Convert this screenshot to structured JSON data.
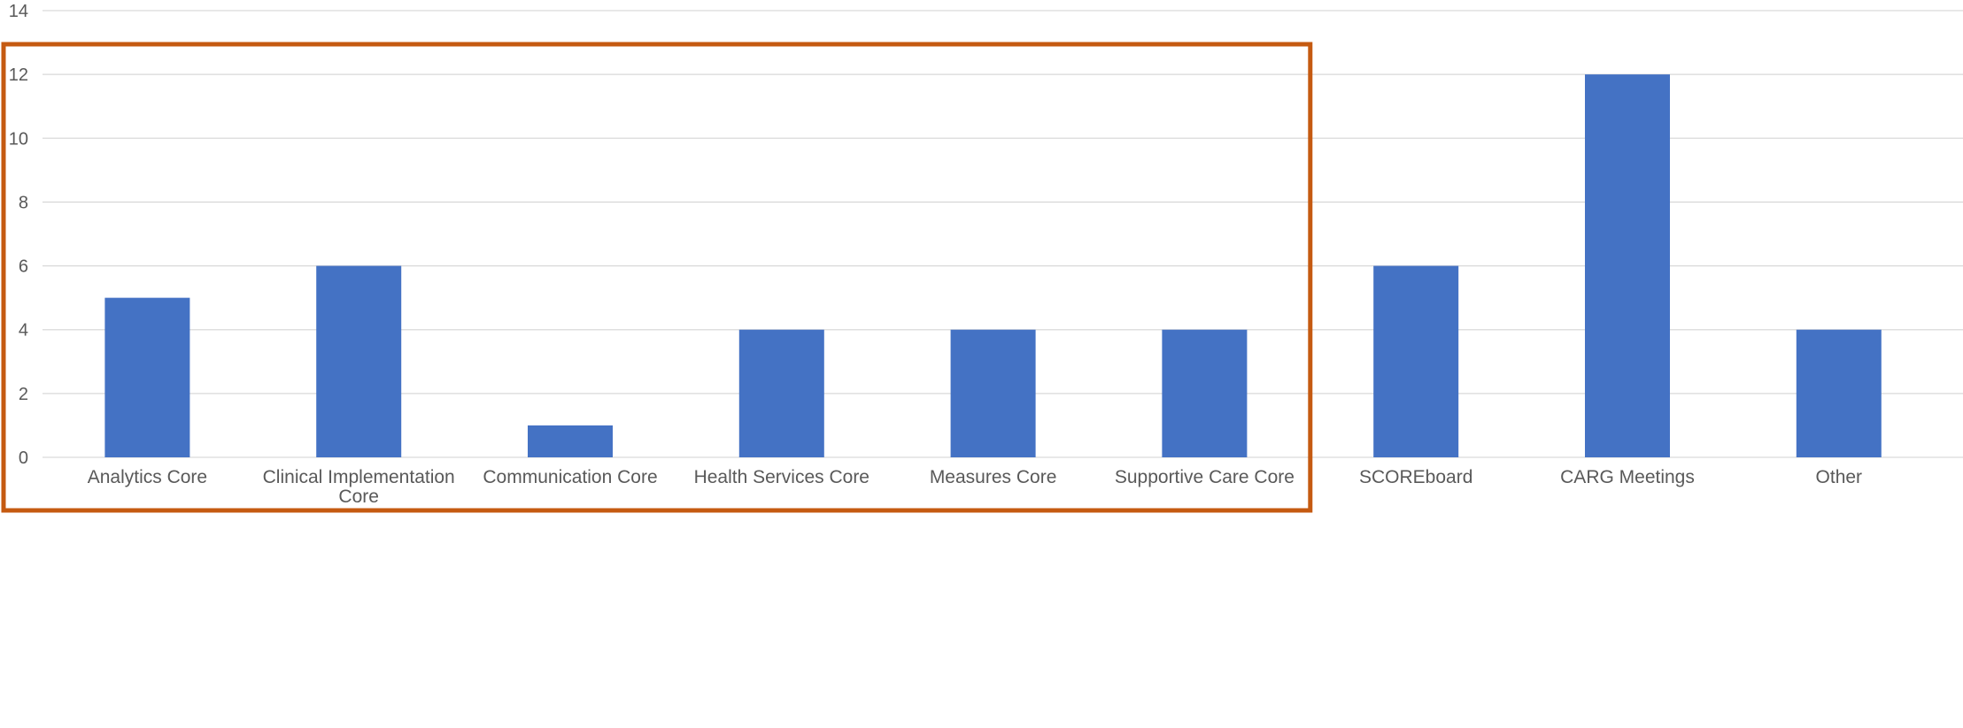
{
  "chart_data": {
    "type": "bar",
    "title": "",
    "xlabel": "",
    "ylabel": "",
    "ylim": [
      0,
      14
    ],
    "y_ticks": [
      "0",
      "2",
      "4",
      "6",
      "8",
      "10",
      "12",
      "14"
    ],
    "grid": true,
    "legend": "none",
    "categories": [
      "Analytics Core",
      "Clinical Implementation Core",
      "Communication Core",
      "Health Services Core",
      "Measures Core",
      "Supportive Care Core",
      "SCOREboard",
      "CARG Meetings",
      "Other"
    ],
    "values": [
      5,
      6,
      1,
      4,
      4,
      4,
      6,
      12,
      4
    ],
    "highlight": {
      "description_visible": false,
      "categories": [
        "Analytics Core",
        "Clinical Implementation Core",
        "Communication Core",
        "Health Services Core",
        "Measures Core",
        "Supportive Care Core"
      ],
      "color": "#C55A11"
    },
    "colors": {
      "bar": "#4472C4",
      "grid": "#D9D9D9",
      "text": "#595959"
    }
  }
}
